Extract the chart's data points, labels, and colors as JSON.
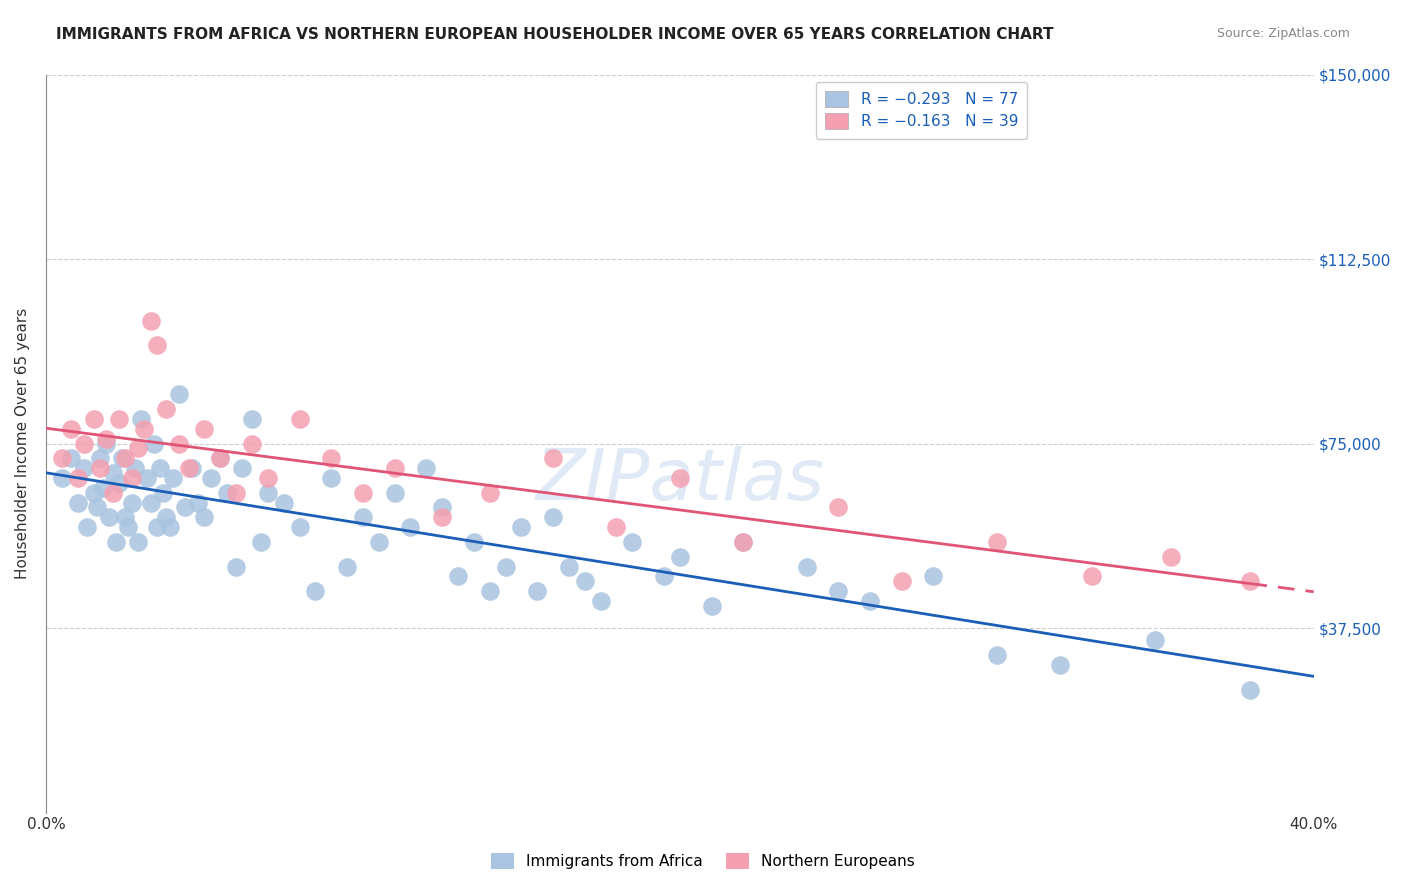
{
  "title": "IMMIGRANTS FROM AFRICA VS NORTHERN EUROPEAN HOUSEHOLDER INCOME OVER 65 YEARS CORRELATION CHART",
  "source": "Source: ZipAtlas.com",
  "xlabel": "",
  "ylabel": "Householder Income Over 65 years",
  "xmin": 0.0,
  "xmax": 0.4,
  "ymin": 0,
  "ymax": 150000,
  "yticks": [
    0,
    37500,
    75000,
    112500,
    150000
  ],
  "ytick_labels": [
    "",
    "$37,500",
    "$75,000",
    "$112,500",
    "$150,000"
  ],
  "xticks": [
    0.0,
    0.08,
    0.16,
    0.24,
    0.32,
    0.4
  ],
  "xtick_labels": [
    "0.0%",
    "",
    "",
    "",
    "",
    "40.0%"
  ],
  "legend_r1": "R = -0.293   N = 77",
  "legend_r2": "R = -0.163   N = 39",
  "watermark": "ZIPatlas",
  "blue_color": "#a8c4e0",
  "pink_color": "#f4a0b0",
  "blue_line_color": "#1a5eb8",
  "pink_line_color": "#e05575",
  "africa_x": [
    0.005,
    0.008,
    0.01,
    0.012,
    0.013,
    0.015,
    0.016,
    0.017,
    0.018,
    0.019,
    0.02,
    0.021,
    0.022,
    0.023,
    0.024,
    0.025,
    0.026,
    0.027,
    0.028,
    0.029,
    0.03,
    0.032,
    0.033,
    0.034,
    0.035,
    0.036,
    0.037,
    0.038,
    0.039,
    0.04,
    0.042,
    0.044,
    0.046,
    0.048,
    0.05,
    0.052,
    0.055,
    0.057,
    0.06,
    0.062,
    0.065,
    0.068,
    0.07,
    0.075,
    0.08,
    0.085,
    0.09,
    0.095,
    0.1,
    0.105,
    0.11,
    0.115,
    0.12,
    0.125,
    0.13,
    0.135,
    0.14,
    0.145,
    0.15,
    0.155,
    0.16,
    0.165,
    0.17,
    0.175,
    0.185,
    0.195,
    0.2,
    0.21,
    0.22,
    0.24,
    0.25,
    0.26,
    0.28,
    0.3,
    0.32,
    0.35,
    0.38
  ],
  "africa_y": [
    68000,
    72000,
    63000,
    70000,
    58000,
    65000,
    62000,
    72000,
    66000,
    75000,
    60000,
    69000,
    55000,
    67000,
    72000,
    60000,
    58000,
    63000,
    70000,
    55000,
    80000,
    68000,
    63000,
    75000,
    58000,
    70000,
    65000,
    60000,
    58000,
    68000,
    85000,
    62000,
    70000,
    63000,
    60000,
    68000,
    72000,
    65000,
    50000,
    70000,
    80000,
    55000,
    65000,
    63000,
    58000,
    45000,
    68000,
    50000,
    60000,
    55000,
    65000,
    58000,
    70000,
    62000,
    48000,
    55000,
    45000,
    50000,
    58000,
    45000,
    60000,
    50000,
    47000,
    43000,
    55000,
    48000,
    52000,
    42000,
    55000,
    50000,
    45000,
    43000,
    48000,
    32000,
    30000,
    35000,
    25000
  ],
  "europe_x": [
    0.005,
    0.008,
    0.01,
    0.012,
    0.015,
    0.017,
    0.019,
    0.021,
    0.023,
    0.025,
    0.027,
    0.029,
    0.031,
    0.033,
    0.035,
    0.038,
    0.042,
    0.045,
    0.05,
    0.055,
    0.06,
    0.065,
    0.07,
    0.08,
    0.09,
    0.1,
    0.11,
    0.125,
    0.14,
    0.16,
    0.18,
    0.2,
    0.22,
    0.25,
    0.27,
    0.3,
    0.33,
    0.355,
    0.38
  ],
  "europe_y": [
    72000,
    78000,
    68000,
    75000,
    80000,
    70000,
    76000,
    65000,
    80000,
    72000,
    68000,
    74000,
    78000,
    100000,
    95000,
    82000,
    75000,
    70000,
    78000,
    72000,
    65000,
    75000,
    68000,
    80000,
    72000,
    65000,
    70000,
    60000,
    65000,
    72000,
    58000,
    68000,
    55000,
    62000,
    47000,
    55000,
    48000,
    52000,
    47000
  ]
}
